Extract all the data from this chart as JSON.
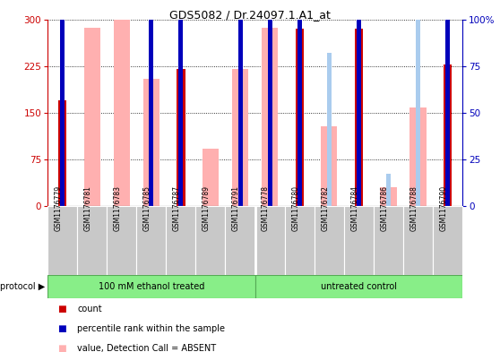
{
  "title": "GDS5082 / Dr.24097.1.A1_at",
  "samples": [
    "GSM1176779",
    "GSM1176781",
    "GSM1176783",
    "GSM1176785",
    "GSM1176787",
    "GSM1176789",
    "GSM1176791",
    "GSM1176778",
    "GSM1176780",
    "GSM1176782",
    "GSM1176784",
    "GSM1176786",
    "GSM1176788",
    "GSM1176790"
  ],
  "group1_count": 7,
  "group2_count": 7,
  "group1_label": "100 mM ethanol treated",
  "group2_label": "untreated control",
  "protocol_label": "protocol",
  "red_bars": [
    170,
    0,
    0,
    0,
    220,
    0,
    0,
    0,
    285,
    0,
    285,
    0,
    0,
    228
  ],
  "pink_bars": [
    0,
    287,
    328,
    205,
    0,
    92,
    220,
    287,
    0,
    128,
    0,
    30,
    158,
    0
  ],
  "blue_bars": [
    145,
    0,
    0,
    130,
    143,
    0,
    143,
    152,
    152,
    0,
    157,
    0,
    0,
    148
  ],
  "light_blue_bars": [
    0,
    0,
    0,
    0,
    0,
    0,
    0,
    0,
    0,
    82,
    0,
    17,
    135,
    0
  ],
  "ylim_left": [
    0,
    300
  ],
  "ylim_right": [
    0,
    100
  ],
  "yticks_left": [
    0,
    75,
    150,
    225,
    300
  ],
  "yticks_right": [
    0,
    25,
    50,
    75,
    100
  ],
  "red_color": "#CC0000",
  "pink_color": "#FFB0B0",
  "blue_color": "#0000BB",
  "light_blue_color": "#AACCEE",
  "group1_bg": "#88EE88",
  "group2_bg": "#88EE88",
  "tick_area_bg": "#C8C8C8",
  "left_axis_color": "#CC0000",
  "right_axis_color": "#0000BB"
}
